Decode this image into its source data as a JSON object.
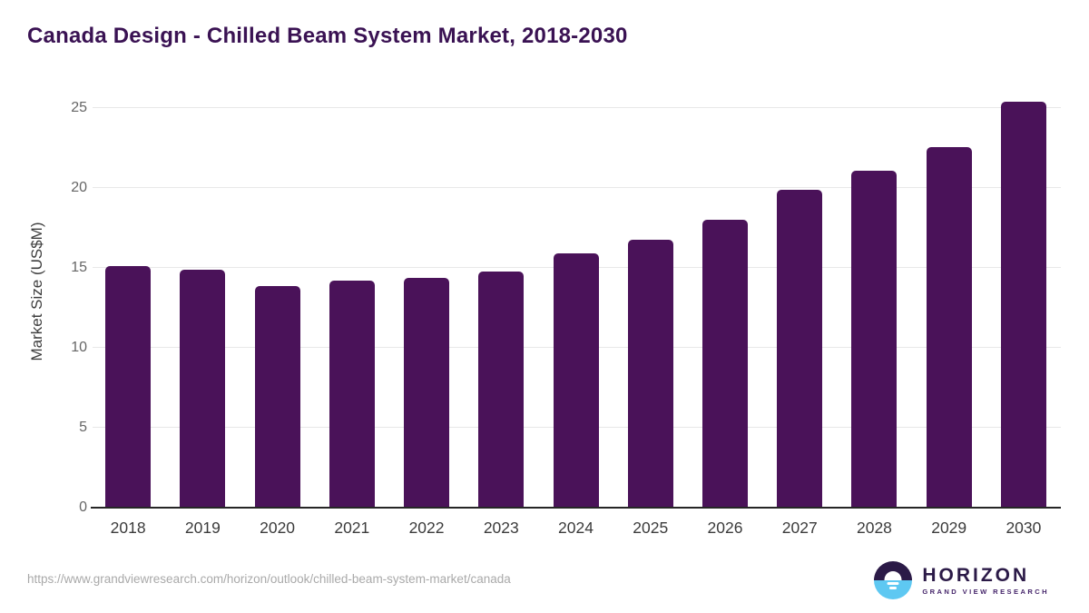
{
  "title": "Canada Design - Chilled Beam System Market, 2018-2030",
  "chart_data": {
    "type": "bar",
    "title": "Canada Design - Chilled Beam System Market, 2018-2030",
    "categories": [
      "2018",
      "2019",
      "2020",
      "2021",
      "2022",
      "2023",
      "2024",
      "2025",
      "2026",
      "2027",
      "2028",
      "2029",
      "2030"
    ],
    "values": [
      15.1,
      14.9,
      13.9,
      14.2,
      14.4,
      14.8,
      15.9,
      16.8,
      18.0,
      19.9,
      21.1,
      22.6,
      25.4
    ],
    "xlabel": "",
    "ylabel": "Market Size (US$M)",
    "ylim": [
      0,
      26.1
    ],
    "yticks": [
      0,
      5,
      10,
      15,
      20,
      25
    ],
    "bar_color": "#4a1259",
    "gridline_color": "#e8e8e8",
    "grid": "horizontal",
    "legend": "none"
  },
  "colors": {
    "title_text": "#3a1253",
    "axis_line": "#262626",
    "tick_text": "#666666",
    "logo_purple": "#2b1a47",
    "logo_blue": "#5ec8f2"
  },
  "footer": {
    "source_url": "https://www.grandviewresearch.com/horizon/outlook/chilled-beam-system-market/canada",
    "logo": {
      "name": "HORIZON",
      "subtitle": "GRAND VIEW RESEARCH"
    }
  }
}
